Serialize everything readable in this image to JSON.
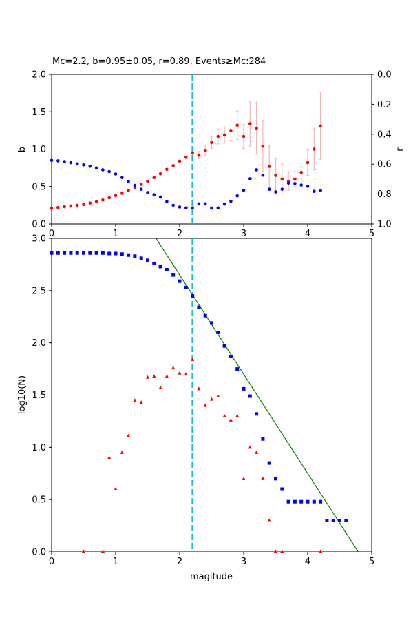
{
  "colors": {
    "red": "#ff0000",
    "blue": "#0000ff",
    "green": "#008000",
    "cyan": "#17becf",
    "errorbar": "#f4b6b6",
    "axis": "#000000"
  },
  "chart_data": [
    {
      "type": "scatter",
      "title": "Mc=2.2, b=0.95±0.05, r=0.89, Events≥Mc:284",
      "xlabel": "",
      "ylabel": "b",
      "ylabel_right": "r",
      "xlim": [
        0,
        5
      ],
      "ylim": [
        0,
        2
      ],
      "ylim_right": [
        1,
        0
      ],
      "xticks": [
        "0",
        "1",
        "2",
        "3",
        "4",
        "5"
      ],
      "yticks": [
        "0.0",
        "0.5",
        "1.0",
        "1.5",
        "2.0"
      ],
      "yticks_right": [
        "0.0",
        "0.2",
        "0.4",
        "0.6",
        "0.8",
        "1.0"
      ],
      "mc_line": 2.2,
      "series": [
        {
          "axis": "left",
          "color": "red",
          "marker": "circle",
          "x": [
            0.0,
            0.1,
            0.2,
            0.3,
            0.4,
            0.5,
            0.6,
            0.7,
            0.8,
            0.9,
            1.0,
            1.1,
            1.2,
            1.3,
            1.4,
            1.5,
            1.6,
            1.7,
            1.8,
            1.9,
            2.0,
            2.1,
            2.2,
            2.3,
            2.4,
            2.5,
            2.6,
            2.7,
            2.8,
            2.9,
            3.0,
            3.1,
            3.2,
            3.3,
            3.4,
            3.5,
            3.6,
            3.7,
            3.8,
            3.9,
            4.0,
            4.1,
            4.2
          ],
          "y": [
            0.21,
            0.22,
            0.23,
            0.24,
            0.25,
            0.26,
            0.28,
            0.3,
            0.32,
            0.35,
            0.38,
            0.41,
            0.45,
            0.49,
            0.53,
            0.57,
            0.62,
            0.67,
            0.73,
            0.78,
            0.84,
            0.89,
            0.95,
            0.92,
            0.98,
            1.09,
            1.17,
            1.19,
            1.25,
            1.32,
            1.17,
            1.34,
            1.28,
            1.04,
            0.77,
            0.65,
            0.6,
            0.57,
            0.6,
            0.69,
            0.82,
            1.0,
            1.31
          ],
          "err": [
            0,
            0,
            0,
            0,
            0,
            0,
            0,
            0,
            0,
            0,
            0,
            0,
            0,
            0,
            0,
            0,
            0,
            0,
            0,
            0,
            0,
            0,
            0.05,
            0.05,
            0.06,
            0.08,
            0.1,
            0.11,
            0.13,
            0.19,
            0.16,
            0.3,
            0.35,
            0.35,
            0.28,
            0.22,
            0.2,
            0.12,
            0.1,
            0.1,
            0.17,
            0.28,
            0.45
          ]
        },
        {
          "axis": "right",
          "color": "blue",
          "marker": "circle",
          "x": [
            0.0,
            0.1,
            0.2,
            0.3,
            0.4,
            0.5,
            0.6,
            0.7,
            0.8,
            0.9,
            1.0,
            1.1,
            1.2,
            1.3,
            1.4,
            1.5,
            1.6,
            1.7,
            1.8,
            1.9,
            2.0,
            2.1,
            2.2,
            2.3,
            2.4,
            2.5,
            2.6,
            2.7,
            2.8,
            2.9,
            3.0,
            3.1,
            3.2,
            3.3,
            3.4,
            3.5,
            3.6,
            3.7,
            3.8,
            3.9,
            4.0,
            4.1,
            4.2
          ],
          "y": [
            0.575,
            0.578,
            0.583,
            0.59,
            0.598,
            0.605,
            0.614,
            0.626,
            0.638,
            0.65,
            0.666,
            0.69,
            0.716,
            0.742,
            0.768,
            0.79,
            0.805,
            0.82,
            0.85,
            0.875,
            0.887,
            0.893,
            0.893,
            0.866,
            0.866,
            0.894,
            0.893,
            0.867,
            0.848,
            0.812,
            0.775,
            0.698,
            0.638,
            0.674,
            0.768,
            0.786,
            0.768,
            0.727,
            0.73,
            0.74,
            0.748,
            0.782,
            0.776
          ]
        }
      ]
    },
    {
      "type": "scatter",
      "title": "",
      "xlabel": "magitude",
      "ylabel": "log10(N)",
      "xlim": [
        0,
        5
      ],
      "ylim": [
        0,
        3
      ],
      "xticks": [
        "0",
        "1",
        "2",
        "3",
        "4",
        "5"
      ],
      "yticks": [
        "0.0",
        "0.5",
        "1.0",
        "1.5",
        "2.0",
        "2.5",
        "3.0"
      ],
      "mc_line": 2.2,
      "fit_line": {
        "a": 4.55,
        "b": 0.95
      },
      "series": [
        {
          "color": "blue",
          "marker": "square",
          "x": [
            0.0,
            0.1,
            0.2,
            0.3,
            0.4,
            0.5,
            0.6,
            0.7,
            0.8,
            0.9,
            1.0,
            1.1,
            1.2,
            1.3,
            1.4,
            1.5,
            1.6,
            1.7,
            1.8,
            1.9,
            2.0,
            2.1,
            2.2,
            2.3,
            2.4,
            2.5,
            2.6,
            2.7,
            2.8,
            2.9,
            3.0,
            3.1,
            3.2,
            3.3,
            3.4,
            3.5,
            3.6,
            3.7,
            3.8,
            3.9,
            4.0,
            4.1,
            4.2,
            4.3,
            4.4,
            4.5,
            4.6
          ],
          "y": [
            2.86,
            2.86,
            2.86,
            2.86,
            2.86,
            2.86,
            2.86,
            2.86,
            2.86,
            2.855,
            2.855,
            2.85,
            2.84,
            2.83,
            2.81,
            2.79,
            2.76,
            2.73,
            2.7,
            2.65,
            2.59,
            2.53,
            2.45,
            2.34,
            2.26,
            2.19,
            2.1,
            1.97,
            1.87,
            1.75,
            1.56,
            1.49,
            1.32,
            1.08,
            0.85,
            0.7,
            0.6,
            0.48,
            0.48,
            0.48,
            0.48,
            0.48,
            0.48,
            0.3,
            0.3,
            0.3,
            0.3
          ]
        },
        {
          "color": "red",
          "marker": "triangle",
          "x": [
            0.5,
            0.8,
            0.9,
            1.0,
            1.1,
            1.2,
            1.3,
            1.4,
            1.5,
            1.6,
            1.7,
            1.8,
            1.9,
            2.0,
            2.1,
            2.2,
            2.3,
            2.4,
            2.5,
            2.6,
            2.7,
            2.8,
            2.9,
            3.0,
            3.1,
            3.2,
            3.3,
            3.4,
            3.5,
            3.6,
            4.2
          ],
          "y": [
            0.0,
            0.0,
            0.9,
            0.6,
            0.95,
            1.11,
            1.45,
            1.43,
            1.67,
            1.68,
            1.57,
            1.68,
            1.76,
            1.71,
            1.7,
            1.84,
            1.56,
            1.4,
            1.46,
            1.49,
            1.3,
            1.26,
            1.3,
            0.7,
            1.0,
            0.95,
            0.7,
            0.3,
            0.0,
            0.0,
            0.0
          ]
        }
      ]
    }
  ]
}
